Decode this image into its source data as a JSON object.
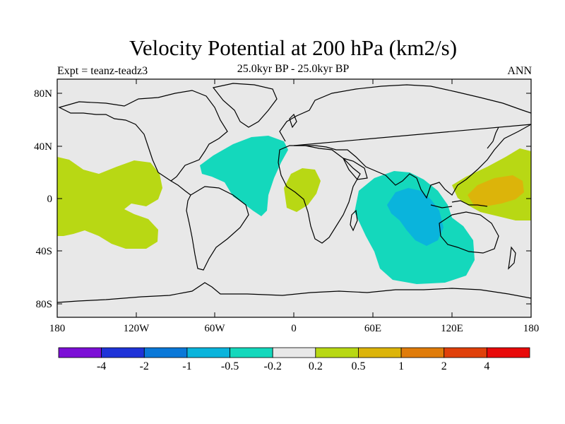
{
  "header": {
    "title": "Velocity Potential at 200 hPa (km2/s)",
    "subtitle": "25.0kyr BP - 25.0kyr BP",
    "left_label": "Expt = teanz-teadz3",
    "right_label": "ANN"
  },
  "axes": {
    "lat_ticks": [
      "80N",
      "40N",
      "0",
      "40S",
      "80S"
    ],
    "lon_ticks": [
      "180",
      "120W",
      "60W",
      "0",
      "60E",
      "120E",
      "180"
    ]
  },
  "colorbar": {
    "colors": [
      "#7c0fd6",
      "#1f33d8",
      "#0a78d8",
      "#0ab4dc",
      "#14d8bc",
      "#e8e8e8",
      "#b8d814",
      "#dcb40a",
      "#e07c0a",
      "#e0400a",
      "#e80a0a"
    ],
    "labels": [
      "-4",
      "-2",
      "-1",
      "-0.5",
      "-0.2",
      "0.2",
      "0.5",
      "1",
      "2",
      "4"
    ]
  },
  "colors": {
    "ocean_background": "#e8e8e8",
    "positive_weak": "#b8d814",
    "positive_mid": "#dcb40a",
    "negative_weak": "#14d8bc",
    "negative_mid": "#0ab4dc"
  }
}
